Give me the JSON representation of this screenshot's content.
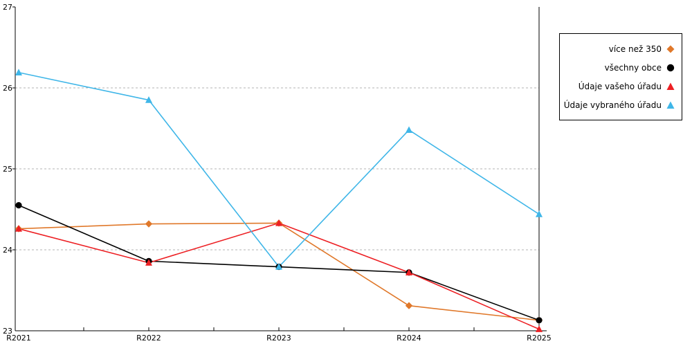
{
  "chart_data": {
    "type": "line",
    "categories": [
      "R2021",
      "R2022",
      "R2023",
      "R2024",
      "R2025"
    ],
    "ylim": [
      23,
      27
    ],
    "yticks": [
      23,
      24,
      25,
      26,
      27
    ],
    "grid": "horizontal-dashed",
    "legend_position": "right-outside",
    "colors": {
      "gridline": "#b3b3b3",
      "axis": "#000000"
    },
    "series": [
      {
        "name": "více než 350",
        "marker": "diamond",
        "color": "#e0782a",
        "values": [
          24.26,
          24.32,
          24.33,
          23.31,
          23.13
        ]
      },
      {
        "name": "všechny obce",
        "marker": "circle",
        "color": "#000000",
        "values": [
          24.55,
          23.86,
          23.79,
          23.72,
          23.13
        ]
      },
      {
        "name": "Údaje vašeho úřadu",
        "marker": "triangle",
        "color": "#ed2024",
        "values": [
          24.26,
          23.84,
          24.33,
          23.72,
          23.02
        ]
      },
      {
        "name": "Údaje vybraného úřadu",
        "marker": "triangle",
        "color": "#3fb6e8",
        "values": [
          26.19,
          25.85,
          23.79,
          25.48,
          24.44
        ]
      }
    ]
  }
}
